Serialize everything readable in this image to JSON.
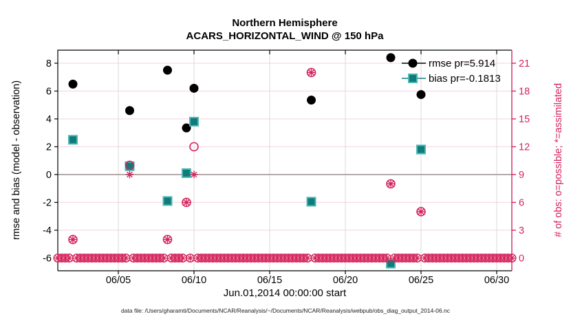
{
  "figure": {
    "title_line1": "Northern Hemisphere",
    "title_line2": "ACARS_HORIZONTAL_WIND @ 150 hPa",
    "xlabel": "Jun.01,2014 00:00:00 start",
    "ylabel_left": "rmse and bias (model - observation)",
    "ylabel_right": "# of obs: o=possible; *=assimilated",
    "caption": "data file: /Users/gharamti/Documents/NCAR/Reanalysis/~/Documents/NCAR/Reanalysis/webpub/obs_diag_output_2014-06.nc"
  },
  "chart_data": {
    "type": "scatter",
    "title": [
      "Northern Hemisphere",
      "ACARS_HORIZONTAL_WIND @ 150 hPa"
    ],
    "xlabel": "Jun.01,2014 00:00:00 start",
    "ylabel_left": "rmse and bias (model - observation)",
    "ylabel_right": "# of obs: o=possible; *=assimilated",
    "x_axis": {
      "unit": "day of June 2014",
      "range_days": [
        1,
        31
      ],
      "tick_days": [
        5,
        10,
        15,
        20,
        25,
        30
      ],
      "tick_labels": [
        "06/05",
        "06/10",
        "06/15",
        "06/20",
        "06/25",
        "06/30"
      ]
    },
    "y_left_axis": {
      "ticks": [
        8,
        6,
        4,
        2,
        0,
        -2,
        -4,
        -6
      ],
      "range": [
        -6.9,
        8.9
      ],
      "zero_line": 0
    },
    "y_right_axis": {
      "ticks": [
        21,
        18,
        15,
        12,
        9,
        6,
        3,
        0
      ],
      "range": [
        -1.35,
        22.35
      ]
    },
    "grid": {
      "horizontal_on": true,
      "vertical_on": true,
      "horizontal_color": "#f6dbe4",
      "vertical_color": "#d9d9d9",
      "zero_line_color": "#b5a8a8"
    },
    "legend": {
      "position": "top-right-inside",
      "entries": [
        {
          "label": "rmse pr=5.914",
          "marker": "filled-circle",
          "color": "#000000"
        },
        {
          "label": "bias pr=-0.1813",
          "marker": "filled-square",
          "color": "#0f7c7b"
        }
      ]
    },
    "series": [
      {
        "name": "rmse pr=5.914",
        "axis": "left",
        "marker": "filled-circle",
        "color": "#000000",
        "x": [
          2,
          5.75,
          8.25,
          9.5,
          10,
          17.75,
          23,
          25
        ],
        "y": [
          6.5,
          4.6,
          7.5,
          3.35,
          6.2,
          5.35,
          8.4,
          5.75
        ]
      },
      {
        "name": "bias pr=-0.1813",
        "axis": "left",
        "marker": "filled-square",
        "color": "#0f7c7b",
        "edge_color": "#4db8b2",
        "x": [
          2,
          5.75,
          8.25,
          9.5,
          10,
          17.75,
          23,
          25
        ],
        "y": [
          2.5,
          0.6,
          -1.9,
          0.1,
          3.8,
          -1.95,
          -6.4,
          1.8
        ]
      },
      {
        "name": "possible",
        "axis": "right",
        "marker": "open-circle",
        "color": "#d4245c",
        "x": [
          2,
          5.75,
          8.25,
          9.5,
          10,
          17.75,
          23,
          25
        ],
        "y": [
          2,
          10,
          2,
          6,
          12,
          20,
          8,
          5
        ]
      },
      {
        "name": "assimilated",
        "axis": "right",
        "marker": "asterisk",
        "color": "#d4245c",
        "x": [
          2,
          5.75,
          8.25,
          9.5,
          10,
          17.75,
          23,
          25
        ],
        "y": [
          2,
          9,
          2,
          6,
          9,
          20,
          8,
          5
        ]
      }
    ],
    "baseline_row": {
      "description": "overlapping possible(o) and assimilated(*) markers where count = 0",
      "axis": "right",
      "value": 0,
      "x_start": 1,
      "x_end": 31,
      "x_step": 0.25,
      "exclude_x": [
        2,
        5.75,
        8.25,
        9.5,
        10,
        17.75,
        23,
        25
      ],
      "color": "#d4245c"
    },
    "colors": {
      "rmse": "#000000",
      "bias_fill": "#0f7c7b",
      "bias_edge": "#4db8b2",
      "obs_magenta": "#d4245c",
      "axis_black": "#000000"
    }
  }
}
